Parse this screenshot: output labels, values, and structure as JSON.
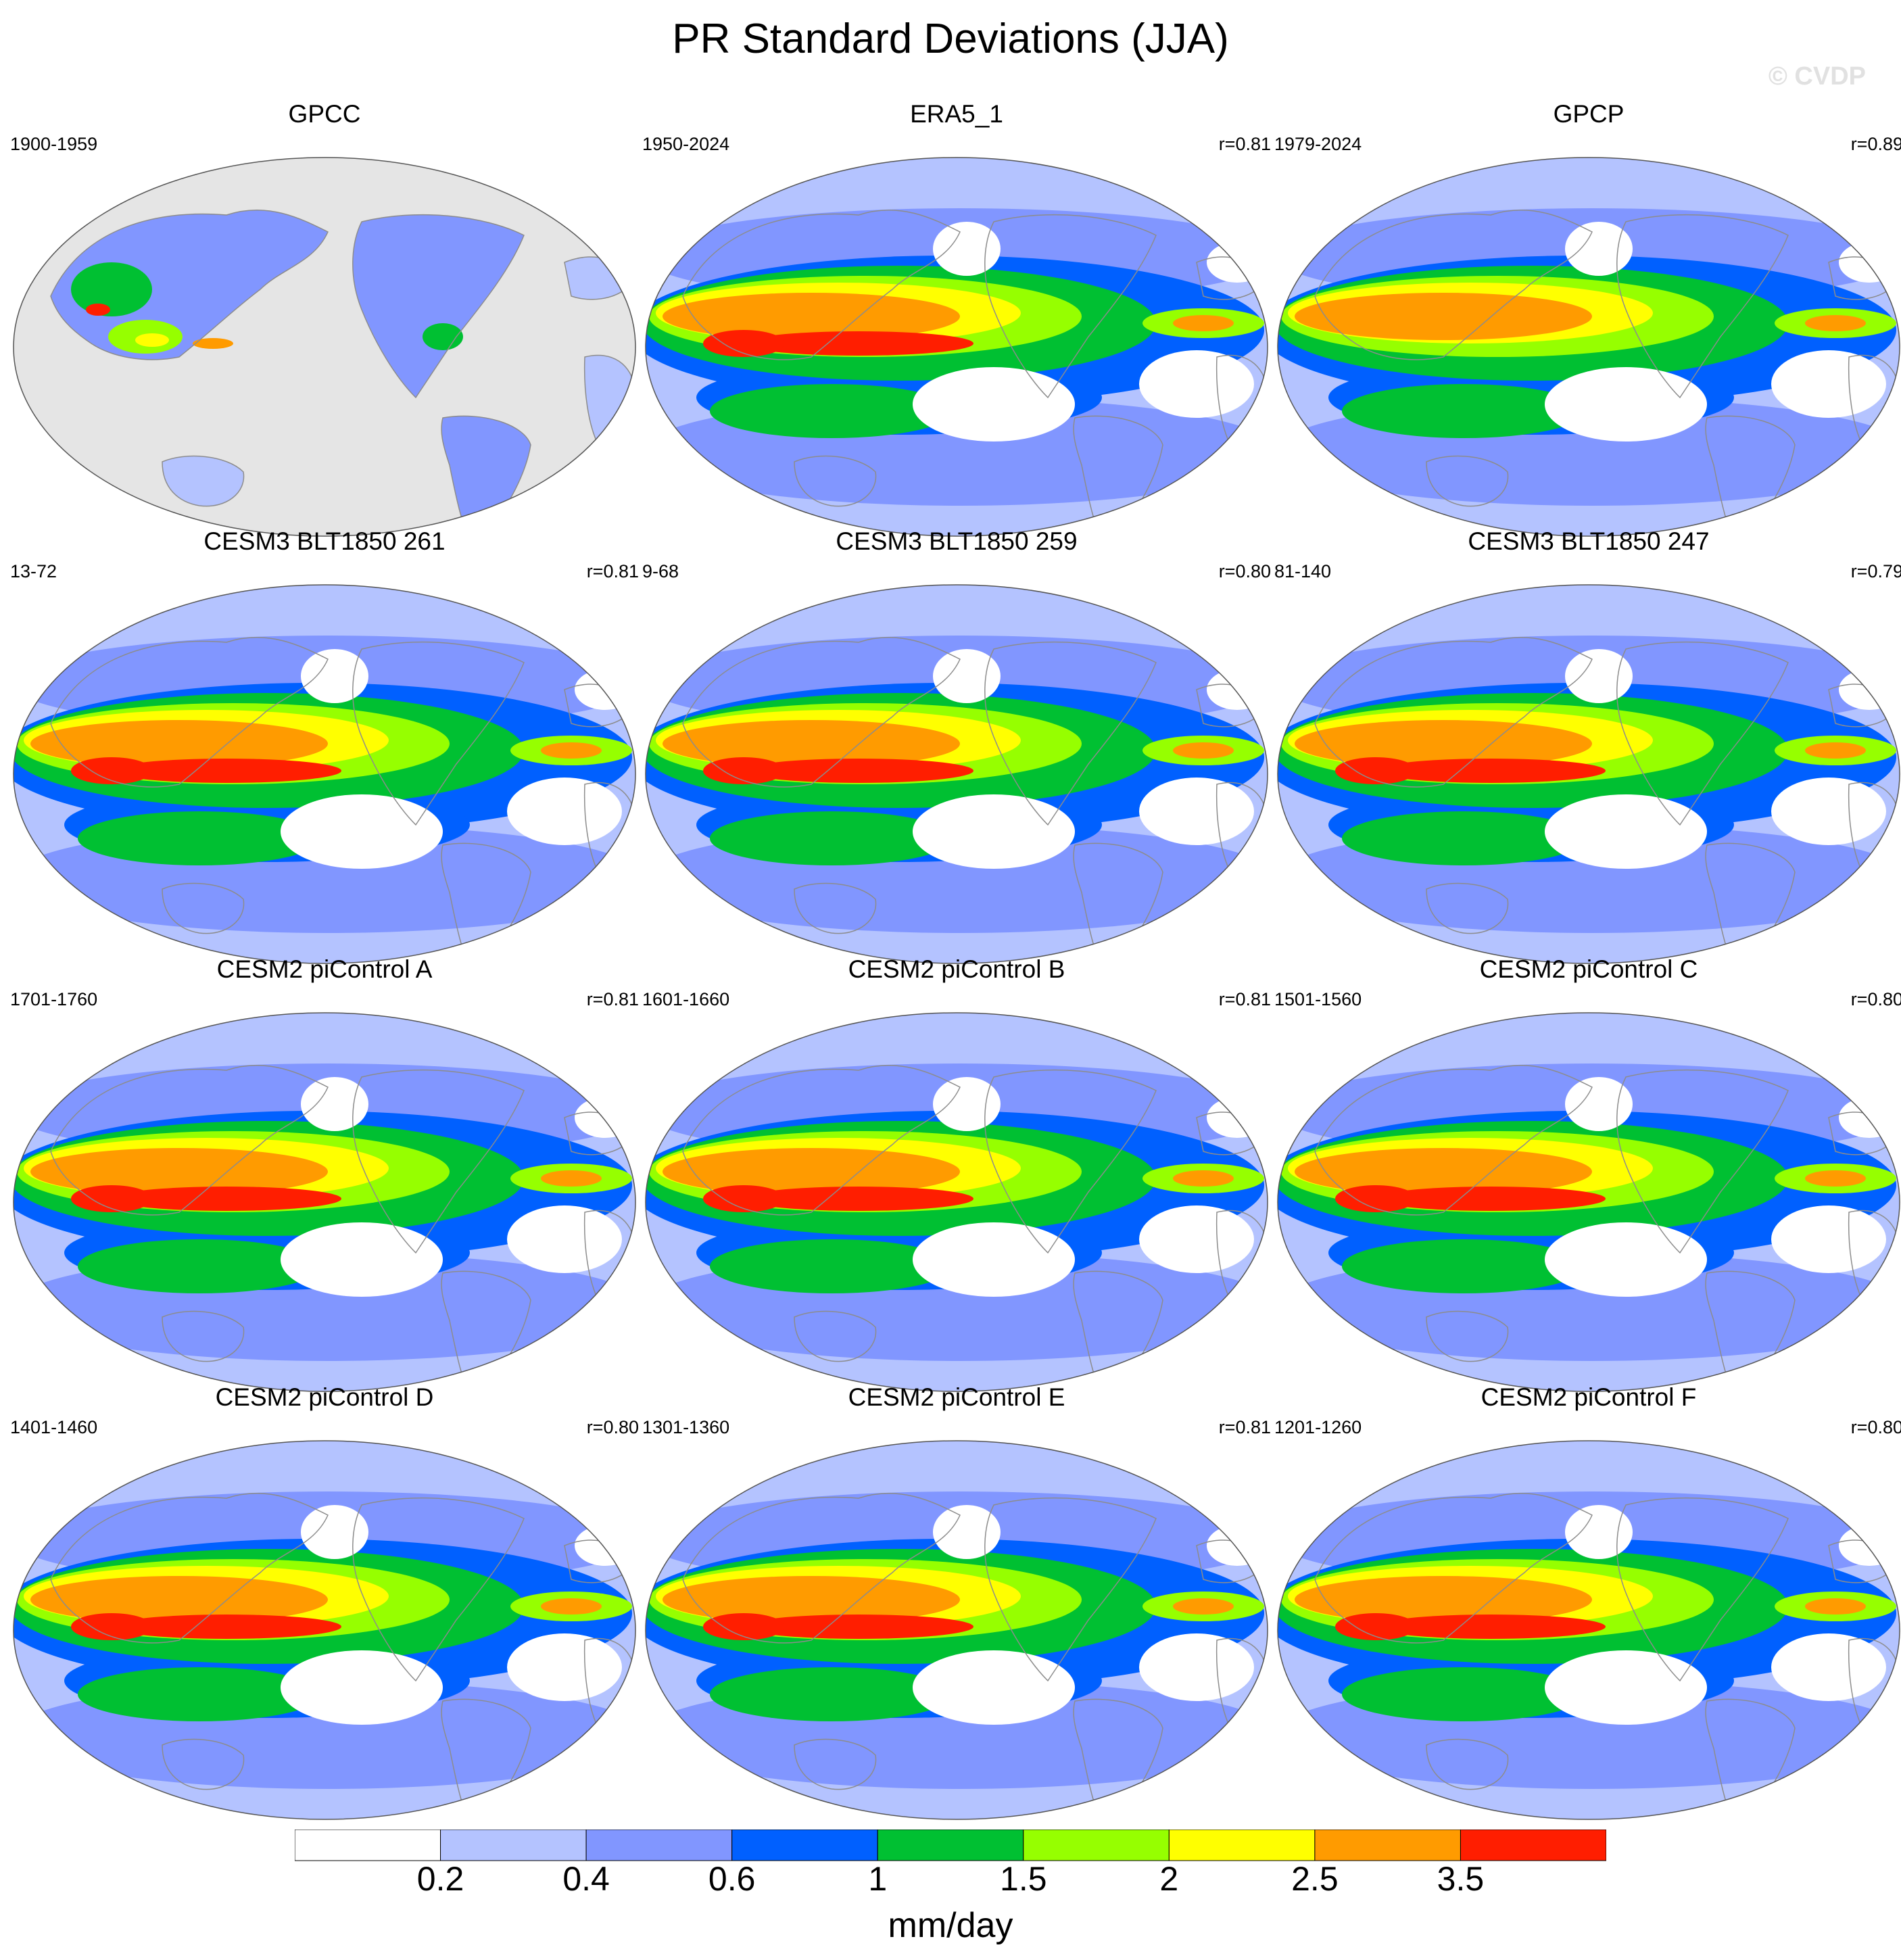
{
  "title": "PR Standard Deviations (JJA)",
  "watermark": "© CVDP",
  "colors": {
    "bins": [
      "#ffffff",
      "#b4c3ff",
      "#8196ff",
      "#0060ff",
      "#00c032",
      "#96ff00",
      "#ffff00",
      "#ff9b00",
      "#ff1e00"
    ],
    "land_mask": "#e5e5e5",
    "coast": "#8c8c8c"
  },
  "panels": [
    {
      "title": "GPCC",
      "period": "1900-1959",
      "r": ""
    },
    {
      "title": "ERA5_1",
      "period": "1950-2024",
      "r": "r=0.81"
    },
    {
      "title": "GPCP",
      "period": "1979-2024",
      "r": "r=0.89"
    },
    {
      "title": "CESM3 BLT1850 261",
      "period": "13-72",
      "r": "r=0.81"
    },
    {
      "title": "CESM3 BLT1850 259",
      "period": "9-68",
      "r": "r=0.80"
    },
    {
      "title": "CESM3 BLT1850 247",
      "period": "81-140",
      "r": "r=0.79"
    },
    {
      "title": "CESM2 piControl A",
      "period": "1701-1760",
      "r": "r=0.81"
    },
    {
      "title": "CESM2 piControl B",
      "period": "1601-1660",
      "r": "r=0.81"
    },
    {
      "title": "CESM2 piControl C",
      "period": "1501-1560",
      "r": "r=0.80"
    },
    {
      "title": "CESM2 piControl D",
      "period": "1401-1460",
      "r": "r=0.80"
    },
    {
      "title": "CESM2 piControl E",
      "period": "1301-1360",
      "r": "r=0.81"
    },
    {
      "title": "CESM2 piControl F",
      "period": "1201-1260",
      "r": "r=0.80"
    }
  ],
  "colorbar": {
    "labels": [
      "0.2",
      "0.4",
      "0.6",
      "1",
      "1.5",
      "2",
      "2.5",
      "3.5"
    ],
    "units": "mm/day"
  }
}
